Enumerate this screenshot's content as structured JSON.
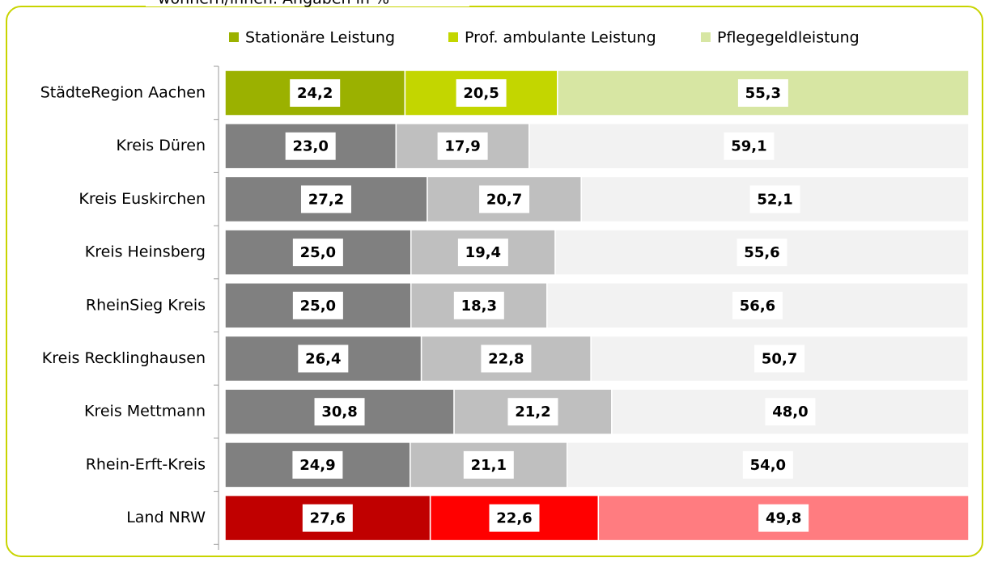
{
  "chart_data": {
    "type": "stacked_barh",
    "subtitle": "wohnern/innen. Angaben in %",
    "categories": [
      "StädteRegion Aachen",
      "Kreis Düren",
      "Kreis Euskirchen",
      "Kreis Heinsberg",
      "RheinSieg Kreis",
      "Kreis Recklinghausen",
      "Kreis Mettmann",
      "Rhein-Erft-Kreis",
      "Land NRW"
    ],
    "series": [
      {
        "name": "Stationäre Leistung",
        "color": "#9bb100",
        "colors": [
          "#9bb100",
          "#808080",
          "#808080",
          "#808080",
          "#808080",
          "#808080",
          "#808080",
          "#808080",
          "#c00000"
        ],
        "values": [
          24.2,
          23.0,
          27.2,
          25.0,
          25.0,
          26.4,
          30.8,
          24.9,
          27.6
        ],
        "value_labels": [
          "24,2",
          "23,0",
          "27,2",
          "25,0",
          "25,0",
          "26,4",
          "30,8",
          "24,9",
          "27,6"
        ]
      },
      {
        "name": "Prof. ambulante Leistung",
        "color": "#c3d600",
        "colors": [
          "#c3d600",
          "#bfbfbf",
          "#bfbfbf",
          "#bfbfbf",
          "#bfbfbf",
          "#bfbfbf",
          "#bfbfbf",
          "#bfbfbf",
          "#ff0000"
        ],
        "values": [
          20.5,
          17.9,
          20.7,
          19.4,
          18.3,
          22.8,
          21.2,
          21.1,
          22.6
        ],
        "value_labels": [
          "20,5",
          "17,9",
          "20,7",
          "19,4",
          "18,3",
          "22,8",
          "21,2",
          "21,1",
          "22,6"
        ]
      },
      {
        "name": "Pflegegeldleistung",
        "color": "#d7e6a3",
        "colors": [
          "#d7e6a3",
          "#f2f2f2",
          "#f2f2f2",
          "#f2f2f2",
          "#f2f2f2",
          "#f2f2f2",
          "#f2f2f2",
          "#f2f2f2",
          "#ff7c80"
        ],
        "values": [
          55.3,
          59.1,
          52.1,
          55.6,
          56.6,
          50.7,
          48.0,
          54.0,
          49.8
        ],
        "value_labels": [
          "55,3",
          "59,1",
          "52,1",
          "55,6",
          "56,6",
          "50,7",
          "48,0",
          "54,0",
          "49,8"
        ]
      }
    ],
    "xlim": [
      0,
      100
    ],
    "legend": "top"
  }
}
